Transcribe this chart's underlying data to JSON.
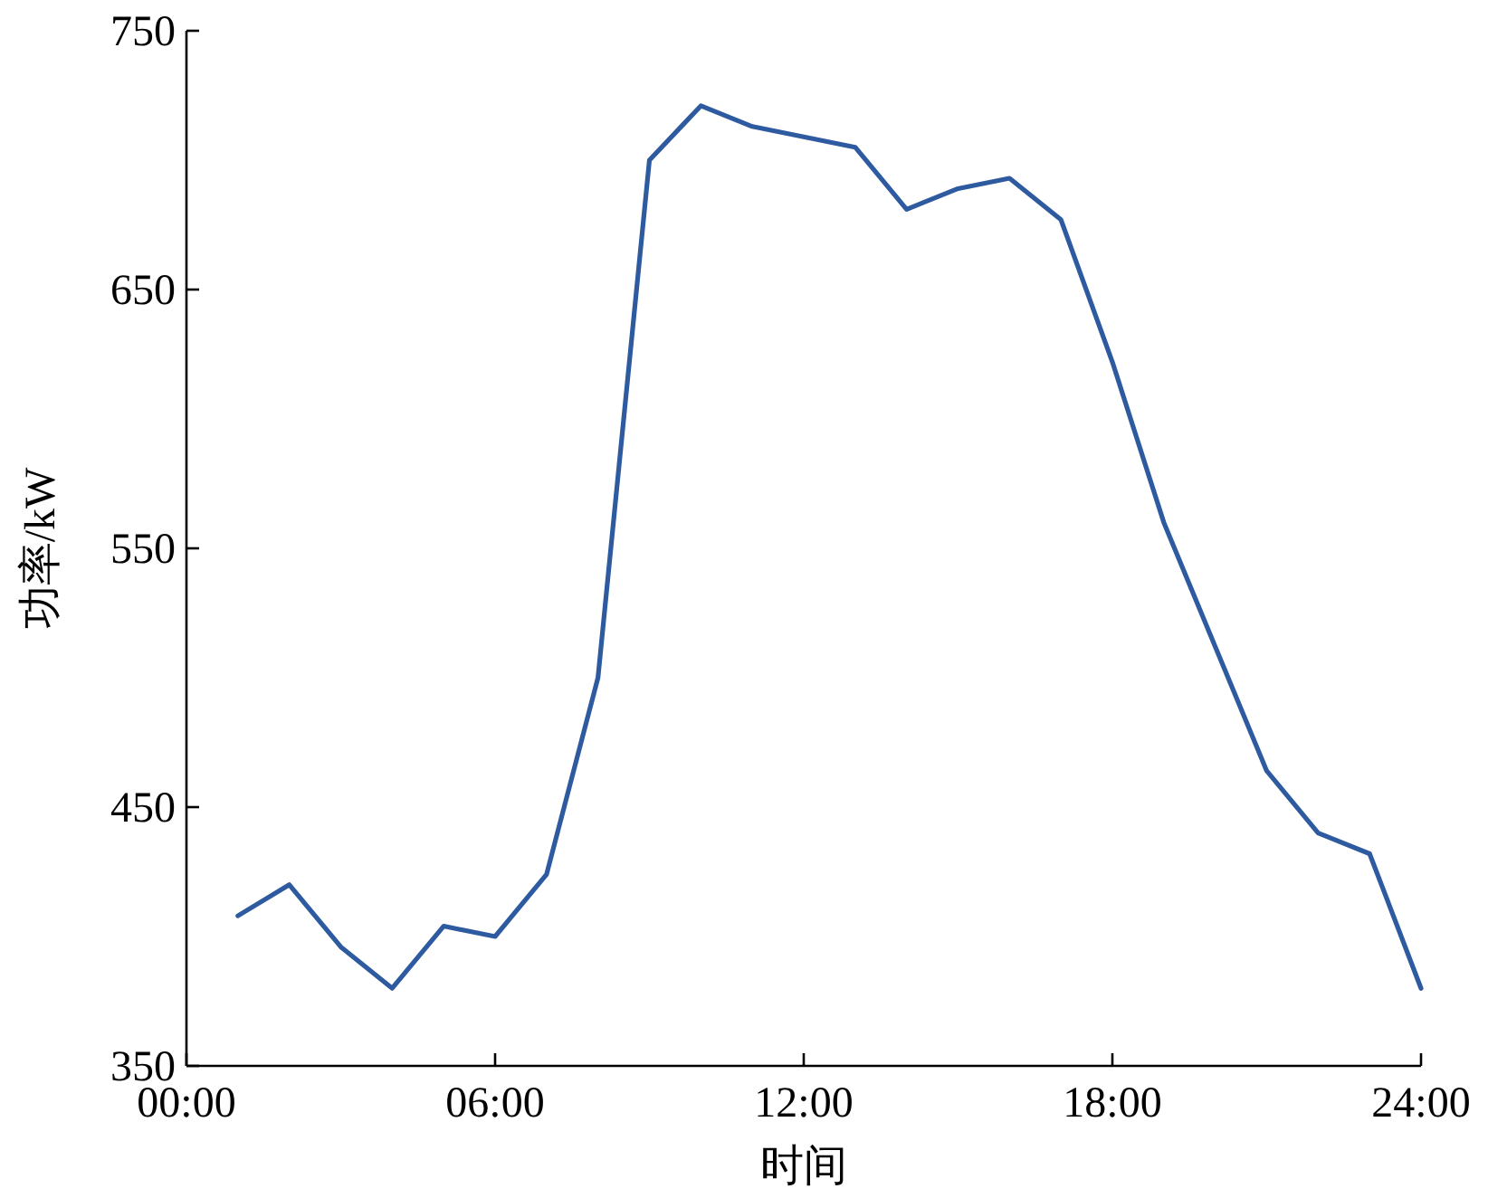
{
  "chart_data": {
    "type": "line",
    "xlabel": "时间",
    "ylabel": "功率/kW",
    "x": [
      1,
      2,
      3,
      4,
      5,
      6,
      7,
      8,
      9,
      10,
      11,
      12,
      13,
      14,
      15,
      16,
      17,
      18,
      19,
      20,
      21,
      22,
      23,
      24
    ],
    "series": [
      {
        "color": "#2e5aa0",
        "values": [
          408,
          420,
          396,
          380,
          404,
          400,
          424,
          500,
          700,
          721,
          713,
          709,
          705,
          681,
          689,
          693,
          677,
          622,
          560,
          512,
          464,
          440,
          432,
          380
        ]
      }
    ],
    "xlim": [
      0,
      24
    ],
    "xticks": [
      {
        "value": 0,
        "label": "00:00"
      },
      {
        "value": 6,
        "label": "06:00"
      },
      {
        "value": 12,
        "label": "12:00"
      },
      {
        "value": 18,
        "label": "18:00"
      },
      {
        "value": 24,
        "label": "24:00"
      }
    ],
    "ylim": [
      350,
      750
    ],
    "yticks": [
      350,
      450,
      550,
      650,
      750
    ],
    "grid": false,
    "marker": "none",
    "line_style": "solid"
  }
}
